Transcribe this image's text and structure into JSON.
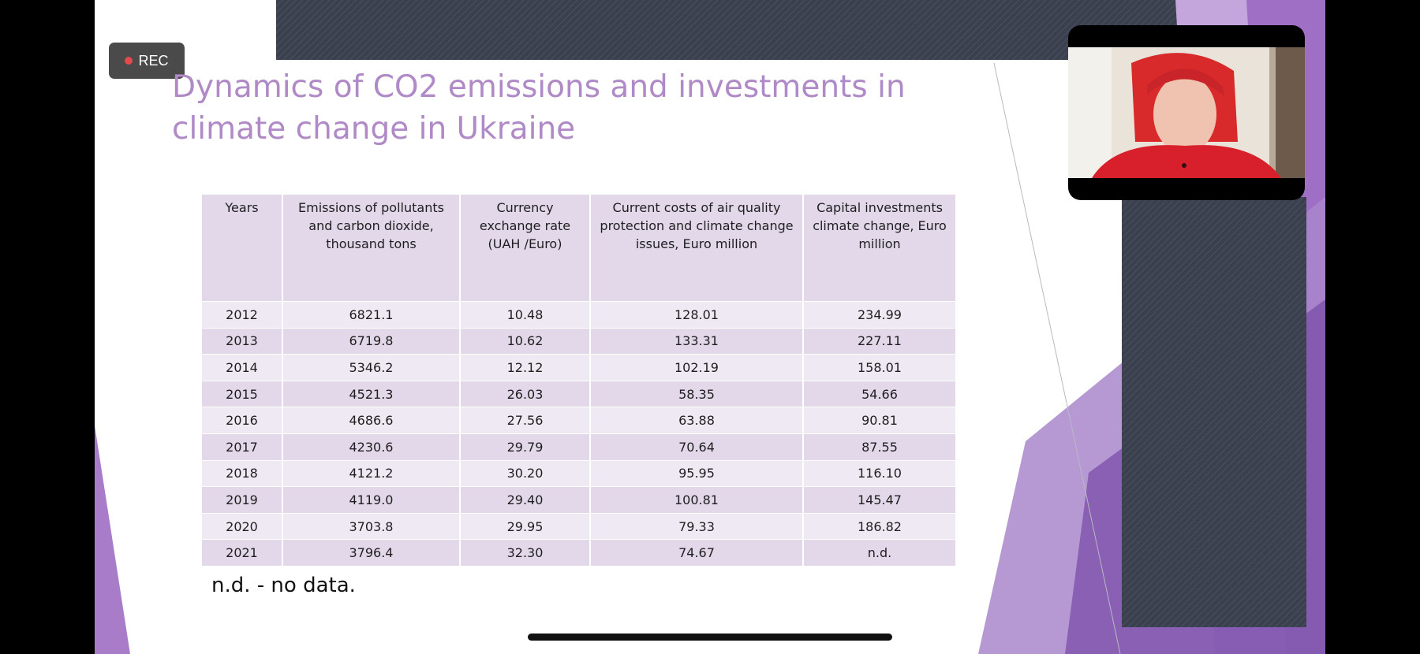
{
  "recording": {
    "label": "REC",
    "dot_color": "#e5484d"
  },
  "slide": {
    "title": "Dynamics of CO2 emissions and investments in climate change in Ukraine",
    "title_color": "#b089c7",
    "table": {
      "headers": [
        "Years",
        "Emissions of pollutants and carbon dioxide, thousand tons",
        "Currency exchange rate (UAH /Euro)",
        "Current costs of air quality protection and climate change issues, Euro million",
        "Capital investments climate change, Euro million"
      ],
      "rows": [
        [
          "2012",
          "6821.1",
          "10.48",
          "128.01",
          "234.99"
        ],
        [
          "2013",
          "6719.8",
          "10.62",
          "133.31",
          "227.11"
        ],
        [
          "2014",
          "5346.2",
          "12.12",
          "102.19",
          "158.01"
        ],
        [
          "2015",
          "4521.3",
          "26.03",
          "58.35",
          "54.66"
        ],
        [
          "2016",
          "4686.6",
          "27.56",
          "63.88",
          "90.81"
        ],
        [
          "2017",
          "4230.6",
          "29.79",
          "70.64",
          "87.55"
        ],
        [
          "2018",
          "4121.2",
          "30.20",
          "95.95",
          "116.10"
        ],
        [
          "2019",
          "4119.0",
          "29.40",
          "100.81",
          "145.47"
        ],
        [
          "2020",
          "3703.8",
          "29.95",
          "79.33",
          "186.82"
        ],
        [
          "2021",
          "3796.4",
          "32.30",
          "74.67",
          "n.d."
        ]
      ]
    },
    "footnote": "n.d. - no data."
  },
  "video": {
    "participant": "presenter-video",
    "shirt_color": "#d8202c",
    "hair_color": "#d82a2a"
  }
}
